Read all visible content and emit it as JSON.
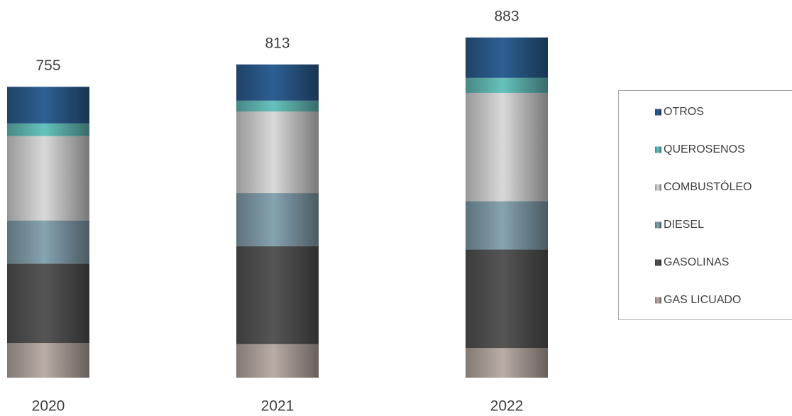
{
  "chart_data": {
    "type": "stacked-bar",
    "categories": [
      "2020",
      "2021",
      "2022"
    ],
    "totals": [
      755,
      813,
      883
    ],
    "series": [
      {
        "name": "GAS LICUADO",
        "color": "#b9ada5",
        "values": [
          90,
          87,
          77
        ]
      },
      {
        "name": "GASOLINAS",
        "color": "#555555",
        "values": [
          206,
          254,
          256
        ]
      },
      {
        "name": "DIESEL",
        "color": "#86a3b0",
        "values": [
          112,
          138,
          125
        ]
      },
      {
        "name": "COMBUSTÓLEO",
        "color": "#d9d9d9",
        "values": [
          219,
          212,
          281
        ]
      },
      {
        "name": "QUEROSENOS",
        "color": "#66c2bd",
        "values": [
          33,
          28,
          39
        ]
      },
      {
        "name": "OTROS",
        "color": "#2d5f93",
        "values": [
          95,
          94,
          105
        ]
      }
    ]
  }
}
